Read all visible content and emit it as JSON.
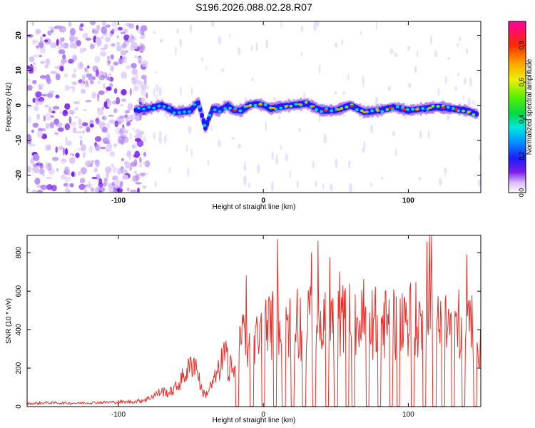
{
  "title": "S196.2026.088.02.28.R07",
  "chart_data": [
    {
      "type": "heatmap",
      "xlabel": "Height of straight line (km)",
      "ylabel": "Frequency (Hz)",
      "xlim": [
        -163,
        150
      ],
      "ylim": [
        -25,
        24
      ],
      "xticks": [
        -100,
        0,
        100
      ],
      "yticks": [
        -20,
        -10,
        0,
        10,
        20
      ],
      "colorbar": {
        "label": "Normalized spectral amplitude",
        "range": [
          0,
          0.93
        ],
        "ticks": [
          0.0,
          0.2,
          0.4,
          0.6,
          0.8
        ]
      },
      "ridge": {
        "x": [
          -90,
          -80,
          -70,
          -60,
          -50,
          -45,
          -40,
          -35,
          -30,
          -25,
          -20,
          -15,
          -10,
          -5,
          0,
          5,
          10,
          20,
          30,
          40,
          50,
          60,
          70,
          80,
          90,
          100,
          110,
          120,
          130,
          140,
          147
        ],
        "freq_hz": [
          -1.5,
          -1.0,
          0.0,
          -2.0,
          -1.5,
          1.0,
          -6.5,
          -1.0,
          -1.5,
          0.0,
          -1.5,
          -1.5,
          0.0,
          0.5,
          0.0,
          -1.0,
          -0.5,
          0.0,
          0.5,
          -1.5,
          -1.5,
          0.0,
          -2.0,
          -1.5,
          -0.5,
          -1.5,
          -1.0,
          -0.5,
          -1.0,
          -1.5,
          -2.5
        ]
      },
      "noise_region_x": [
        -163,
        -88
      ]
    },
    {
      "type": "line",
      "xlabel": "Height of straight line (km)",
      "ylabel": "SNR (10 * v/v)",
      "xlim": [
        -163,
        150
      ],
      "ylim": [
        0,
        890
      ],
      "xticks": [
        -100,
        0,
        100
      ],
      "yticks": [
        0,
        200,
        400,
        600,
        800
      ],
      "series": [
        {
          "name": "SNR",
          "color": "#e8312b",
          "x": [
            -163,
            -150,
            -130,
            -110,
            -90,
            -85,
            -80,
            -75,
            -70,
            -65,
            -60,
            -55,
            -50,
            -48,
            -45,
            -43,
            -40,
            -35,
            -30,
            -27,
            -25,
            -22,
            -20,
            -18,
            -15,
            -12,
            -10,
            -5,
            0,
            5,
            10,
            15,
            20,
            25,
            30,
            40,
            50,
            60,
            70,
            80,
            90,
            100,
            110,
            118,
            120,
            125,
            130,
            140,
            147,
            150
          ],
          "values": [
            15,
            20,
            18,
            22,
            25,
            30,
            40,
            60,
            80,
            70,
            100,
            160,
            210,
            240,
            180,
            90,
            60,
            120,
            200,
            260,
            230,
            240,
            150,
            270,
            320,
            360,
            300,
            340,
            400,
            420,
            450,
            480,
            380,
            420,
            440,
            410,
            430,
            460,
            420,
            440,
            410,
            470,
            430,
            880,
            460,
            420,
            450,
            410,
            470,
            300
          ]
        }
      ],
      "dropouts_x": [
        -18,
        -8,
        0,
        8,
        14,
        20,
        28,
        35,
        44,
        50,
        58,
        62,
        72,
        80,
        88,
        93,
        103,
        111,
        118,
        124,
        131,
        138,
        146
      ]
    }
  ]
}
